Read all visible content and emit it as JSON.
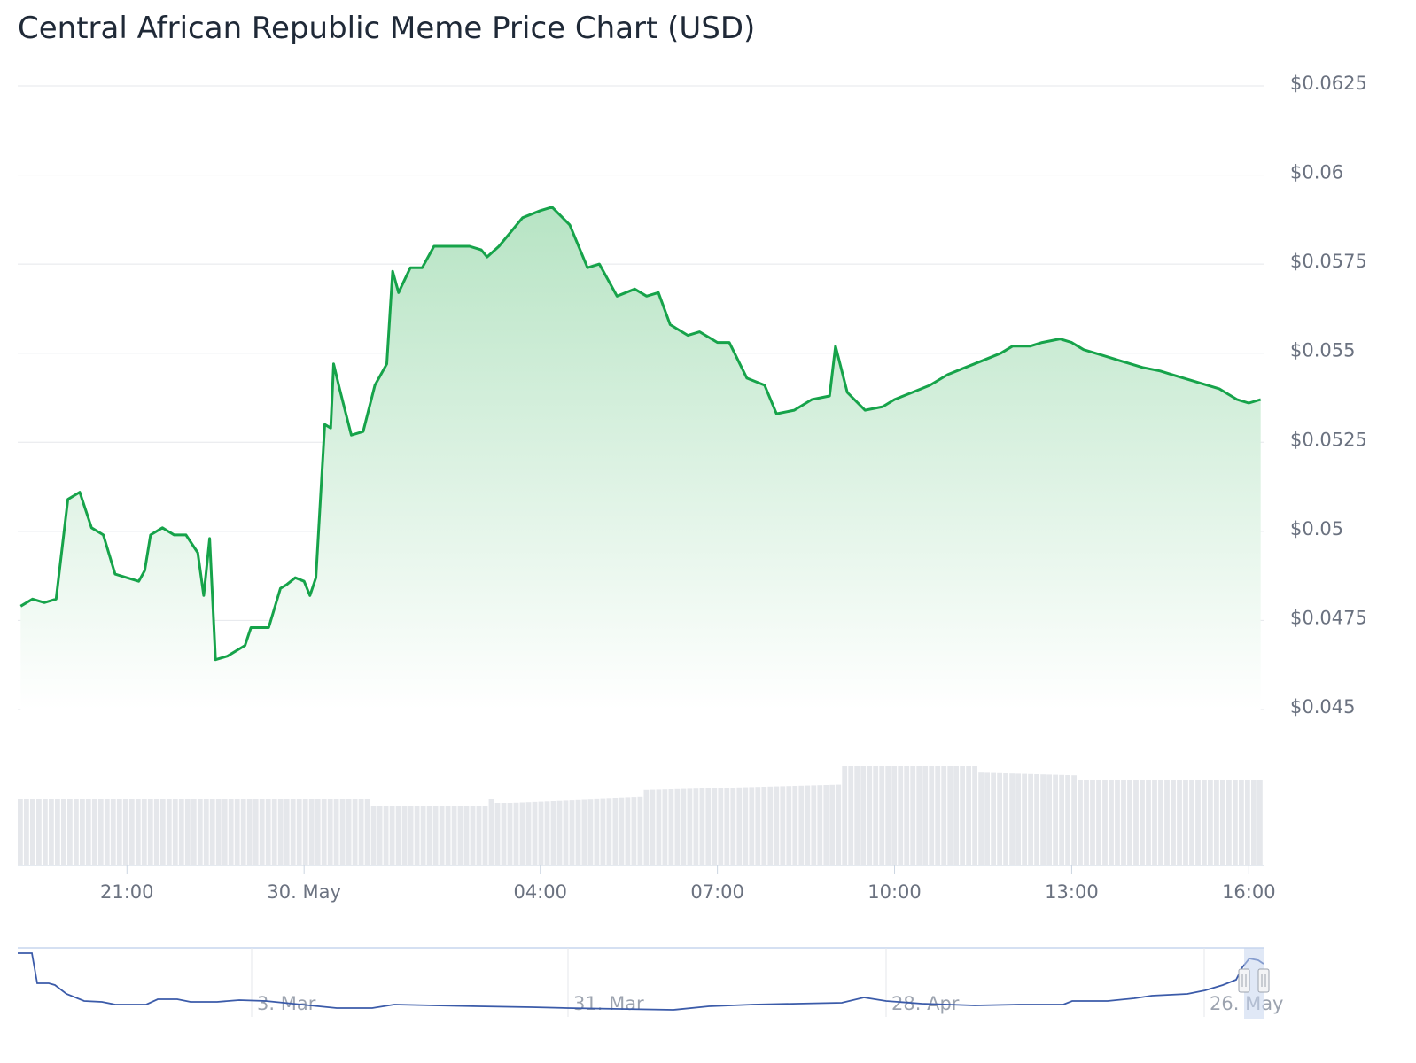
{
  "title": "Central African Republic Meme Price Chart (USD)",
  "colors": {
    "line": "#16a34a",
    "area_top": "#bfe8c9",
    "grid": "#e5e7eb",
    "volume": "#e5e7eb",
    "navigator_line": "#3b5ba9",
    "navigator_mask": "#c7d6ee"
  },
  "chart_data": [
    {
      "type": "area",
      "title": "Central African Republic Meme Price Chart (USD)",
      "ylim": [
        0.045,
        0.0625
      ],
      "y_ticks": [
        "$0.0625",
        "$0.06",
        "$0.0575",
        "$0.055",
        "$0.0525",
        "$0.05",
        "$0.0475",
        "$0.045"
      ],
      "x_ticks": [
        "21:00",
        "30. May",
        "04:00",
        "07:00",
        "10:00",
        "13:00",
        "16:00"
      ],
      "grid": true,
      "series": [
        {
          "x_hours": [
            -4.8,
            -4.6,
            -4.4,
            -4.2,
            -4.0,
            -3.8,
            -3.6,
            -3.4,
            -3.2,
            -3.0,
            -2.8,
            -2.7,
            -2.6,
            -2.4,
            -2.3,
            -2.2,
            -2.0,
            -1.8,
            -1.7,
            -1.6,
            -1.5,
            -1.3,
            -1.1,
            -1.0,
            -0.9,
            -0.6,
            -0.4,
            -0.3,
            -0.15,
            0.0,
            0.1,
            0.2,
            0.35,
            0.45,
            0.5,
            0.6,
            0.8,
            1.0,
            1.2,
            1.4,
            1.5,
            1.6,
            1.8,
            2.0,
            2.2,
            2.5,
            2.8,
            3.0,
            3.1,
            3.3,
            3.5,
            3.7,
            4.0,
            4.2,
            4.5,
            4.8,
            5.0,
            5.3,
            5.6,
            5.8,
            6.0,
            6.2,
            6.5,
            6.7,
            7.0,
            7.2,
            7.5,
            7.8,
            8.0,
            8.3,
            8.6,
            8.9,
            9.0,
            9.2,
            9.5,
            9.8,
            10.0,
            10.3,
            10.6,
            10.9,
            11.2,
            11.5,
            11.8,
            12.0,
            12.3,
            12.5,
            12.8,
            13.0,
            13.1,
            13.2,
            13.4,
            13.6,
            13.8,
            14.0,
            14.2,
            14.5,
            14.7,
            14.9,
            15.1,
            15.3,
            15.5,
            15.6,
            15.7,
            15.8,
            16.0,
            16.2
          ],
          "values": [
            0.0479,
            0.0481,
            0.048,
            0.0481,
            0.0509,
            0.0511,
            0.0501,
            0.0499,
            0.0488,
            0.0487,
            0.0486,
            0.0489,
            0.0499,
            0.0501,
            0.05,
            0.0499,
            0.0499,
            0.0494,
            0.0482,
            0.0498,
            0.0464,
            0.0465,
            0.0467,
            0.0468,
            0.0473,
            0.0473,
            0.0484,
            0.0485,
            0.0487,
            0.0486,
            0.0482,
            0.0487,
            0.053,
            0.0529,
            0.0547,
            0.054,
            0.0527,
            0.0528,
            0.0541,
            0.0547,
            0.0573,
            0.0567,
            0.0574,
            0.0574,
            0.058,
            0.058,
            0.058,
            0.0579,
            0.0577,
            0.058,
            0.0584,
            0.0588,
            0.059,
            0.0591,
            0.0586,
            0.0574,
            0.0575,
            0.0566,
            0.0568,
            0.0566,
            0.0567,
            0.0558,
            0.0555,
            0.0556,
            0.0553,
            0.0553,
            0.0543,
            0.0541,
            0.0533,
            0.0534,
            0.0537,
            0.0538,
            0.0552,
            0.0539,
            0.0534,
            0.0535,
            0.0537,
            0.0539,
            0.0541,
            0.0544,
            0.0546,
            0.0548,
            0.055,
            0.0552,
            0.0552,
            0.0553,
            0.0554,
            0.0553,
            0.0552,
            0.0551,
            0.055,
            0.0549,
            0.0548,
            0.0547,
            0.0546,
            0.0545,
            0.0544,
            0.0543,
            0.0542,
            0.0541,
            0.054,
            0.0539,
            0.0538,
            0.0537,
            0.0536,
            0.0537
          ]
        }
      ]
    }
  ],
  "navigator": {
    "ticks": [
      "3. Mar",
      "31. Mar",
      "28. Apr",
      "26. May"
    ]
  }
}
